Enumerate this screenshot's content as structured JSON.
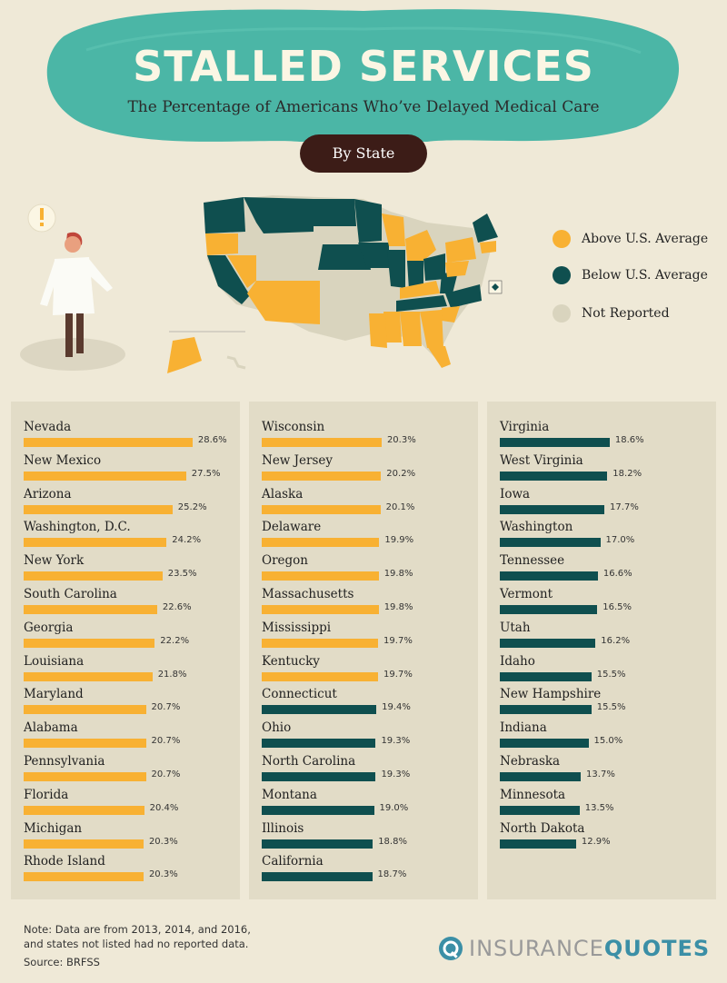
{
  "header": {
    "title": "STALLED SERVICES",
    "subtitle": "The Percentage of Americans Who’ve Delayed Medical Care",
    "pill": "By State"
  },
  "legend": [
    {
      "label": "Above U.S. Average",
      "color": "#f8b133"
    },
    {
      "label": "Below U.S. Average",
      "color": "#0f4f4f"
    },
    {
      "label": "Not Reported",
      "color": "#d9d4be"
    }
  ],
  "colors": {
    "above": "#f8b133",
    "below": "#0f4f4f",
    "notReported": "#d9d4be",
    "teal": "#4bb6a6",
    "pill": "#3c1c17",
    "panel": "#e2dcc7",
    "background": "#efe9d7"
  },
  "chart_data": {
    "type": "bar",
    "orientation": "horizontal",
    "unit": "%",
    "columns": [
      [
        {
          "state": "Nevada",
          "value": 28.6,
          "label": "28.6%",
          "group": "above"
        },
        {
          "state": "New Mexico",
          "value": 27.5,
          "label": "27.5%",
          "group": "above"
        },
        {
          "state": "Arizona",
          "value": 25.2,
          "label": "25.2%",
          "group": "above"
        },
        {
          "state": "Washington, D.C.",
          "value": 24.2,
          "label": "24.2%",
          "group": "above"
        },
        {
          "state": "New York",
          "value": 23.5,
          "label": "23.5%",
          "group": "above"
        },
        {
          "state": "South Carolina",
          "value": 22.6,
          "label": "22.6%",
          "group": "above"
        },
        {
          "state": "Georgia",
          "value": 22.2,
          "label": "22.2%",
          "group": "above"
        },
        {
          "state": "Louisiana",
          "value": 21.8,
          "label": "21.8%",
          "group": "above"
        },
        {
          "state": "Maryland",
          "value": 20.7,
          "label": "20.7%",
          "group": "above"
        },
        {
          "state": "Alabama",
          "value": 20.7,
          "label": "20.7%",
          "group": "above"
        },
        {
          "state": "Pennsylvania",
          "value": 20.7,
          "label": "20.7%",
          "group": "above"
        },
        {
          "state": "Florida",
          "value": 20.4,
          "label": "20.4%",
          "group": "above"
        },
        {
          "state": "Michigan",
          "value": 20.3,
          "label": "20.3%",
          "group": "above"
        },
        {
          "state": "Rhode Island",
          "value": 20.3,
          "label": "20.3%",
          "group": "above"
        }
      ],
      [
        {
          "state": "Wisconsin",
          "value": 20.3,
          "label": "20.3%",
          "group": "above"
        },
        {
          "state": "New Jersey",
          "value": 20.2,
          "label": "20.2%",
          "group": "above"
        },
        {
          "state": "Alaska",
          "value": 20.1,
          "label": "20.1%",
          "group": "above"
        },
        {
          "state": "Delaware",
          "value": 19.9,
          "label": "19.9%",
          "group": "above"
        },
        {
          "state": "Oregon",
          "value": 19.8,
          "label": "19.8%",
          "group": "above"
        },
        {
          "state": "Massachusetts",
          "value": 19.8,
          "label": "19.8%",
          "group": "above"
        },
        {
          "state": "Mississippi",
          "value": 19.7,
          "label": "19.7%",
          "group": "above"
        },
        {
          "state": "Kentucky",
          "value": 19.7,
          "label": "19.7%",
          "group": "above"
        },
        {
          "state": "Connecticut",
          "value": 19.4,
          "label": "19.4%",
          "group": "below"
        },
        {
          "state": "Ohio",
          "value": 19.3,
          "label": "19.3%",
          "group": "below"
        },
        {
          "state": "North Carolina",
          "value": 19.3,
          "label": "19.3%",
          "group": "below"
        },
        {
          "state": "Montana",
          "value": 19.0,
          "label": "19.0%",
          "group": "below"
        },
        {
          "state": "Illinois",
          "value": 18.8,
          "label": "18.8%",
          "group": "below"
        },
        {
          "state": "California",
          "value": 18.7,
          "label": "18.7%",
          "group": "below"
        }
      ],
      [
        {
          "state": "Virginia",
          "value": 18.6,
          "label": "18.6%",
          "group": "below"
        },
        {
          "state": "West Virginia",
          "value": 18.2,
          "label": "18.2%",
          "group": "below"
        },
        {
          "state": "Iowa",
          "value": 17.7,
          "label": "17.7%",
          "group": "below"
        },
        {
          "state": "Washington",
          "value": 17.0,
          "label": "17.0%",
          "group": "below"
        },
        {
          "state": "Tennessee",
          "value": 16.6,
          "label": "16.6%",
          "group": "below"
        },
        {
          "state": "Vermont",
          "value": 16.5,
          "label": "16.5%",
          "group": "below"
        },
        {
          "state": "Utah",
          "value": 16.2,
          "label": "16.2%",
          "group": "below"
        },
        {
          "state": "Idaho",
          "value": 15.5,
          "label": "15.5%",
          "group": "below"
        },
        {
          "state": "New Hampshire",
          "value": 15.5,
          "label": "15.5%",
          "group": "below"
        },
        {
          "state": "Indiana",
          "value": 15.0,
          "label": "15.0%",
          "group": "below"
        },
        {
          "state": "Nebraska",
          "value": 13.7,
          "label": "13.7%",
          "group": "below"
        },
        {
          "state": "Minnesota",
          "value": 13.5,
          "label": "13.5%",
          "group": "below"
        },
        {
          "state": "North Dakota",
          "value": 12.9,
          "label": "12.9%",
          "group": "below"
        }
      ]
    ]
  },
  "note": {
    "line1": "Note: Data are from 2013, 2014, and 2016,",
    "line2": "and states not listed had no reported data.",
    "source": "Source: BRFSS"
  },
  "logo": {
    "part1": "INSURANCE",
    "part2": "QUOTES",
    "icon": "iq-logo-icon"
  }
}
